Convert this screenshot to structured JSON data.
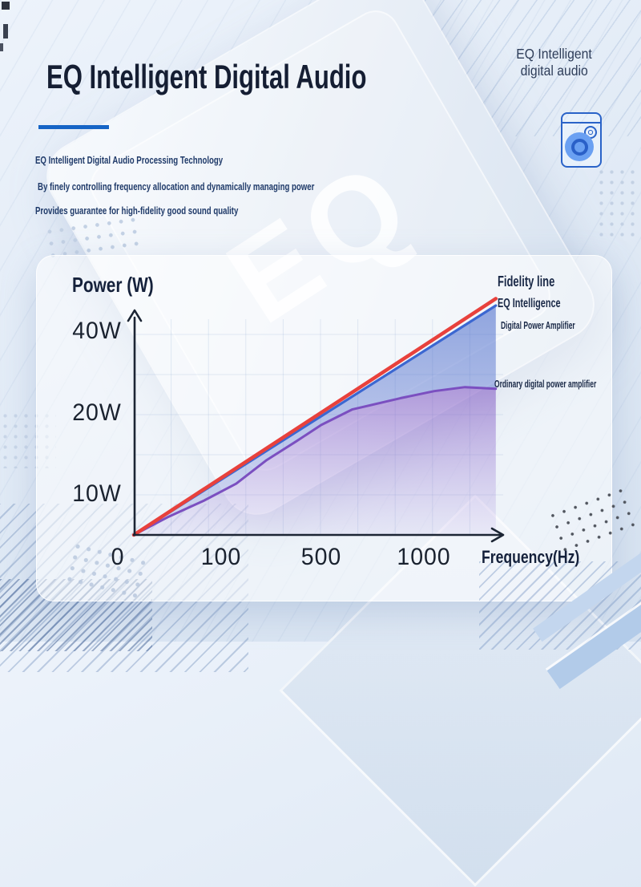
{
  "header": {
    "title": "EQ Intelligent Digital Audio",
    "subtitles": [
      "EQ Intelligent Digital Audio Processing Technology",
      "By finely controlling frequency allocation and dynamically managing power",
      "Provides guarantee for high-fidelity good sound quality"
    ]
  },
  "brand": {
    "line1": "EQ Intelligent",
    "line2": "digital audio"
  },
  "chip": {
    "label": "EQ"
  },
  "colors": {
    "accent_blue": "#1564c6",
    "line_red": "#e8413c",
    "line_blue": "#3b67d1",
    "line_purple": "#7b4fc0",
    "axis": "#1c2534",
    "heading_navy": "#151e33"
  },
  "chart_data": {
    "type": "area",
    "title": "",
    "xlabel": "Frequency(Hz)",
    "ylabel": "Power (W)",
    "xlim": [
      0,
      1350
    ],
    "ylim": [
      0,
      48
    ],
    "grid": true,
    "legend_position": "right",
    "x_ticks": [
      {
        "label": "0",
        "f": -0.042
      },
      {
        "label": "100",
        "f": 0.234
      },
      {
        "label": "500",
        "f": 0.502
      },
      {
        "label": "1000",
        "f": 0.777
      }
    ],
    "y_ticks": [
      {
        "label": "10W",
        "f": 0.181
      },
      {
        "label": "20W",
        "f": 0.544
      },
      {
        "label": "40W",
        "f": 0.907
      }
    ],
    "x_scale": [
      [
        0,
        0
      ],
      [
        100,
        0.234
      ],
      [
        500,
        0.502
      ],
      [
        1000,
        0.777
      ]
    ],
    "y_scale": [
      [
        0,
        0
      ],
      [
        10,
        0.181
      ],
      [
        20,
        0.544
      ],
      [
        40,
        0.907
      ]
    ],
    "series": [
      {
        "name": "Fidelity line",
        "color": "#e8413c",
        "width": 4.5,
        "points": [
          [
            0,
            0
          ],
          [
            1350,
            48
          ]
        ],
        "fill": "none"
      },
      {
        "name": "EQ Intelligence Digital Power Amplifier",
        "color": "#3b67d1",
        "width": 3.2,
        "points": [
          [
            0,
            0
          ],
          [
            1350,
            46.3
          ]
        ],
        "fill": "to-ordinary"
      },
      {
        "name": "Ordinary digital power amplifier",
        "color": "#7b4fc0",
        "width": 3,
        "points": [
          [
            0,
            0
          ],
          [
            40,
            4.5
          ],
          [
            80,
            8.4
          ],
          [
            160,
            11.3
          ],
          [
            282,
            14.2
          ],
          [
            400,
            16.5
          ],
          [
            500,
            18.5
          ],
          [
            650,
            20.8
          ],
          [
            887,
            23.6
          ],
          [
            1050,
            25.3
          ],
          [
            1200,
            26.3
          ],
          [
            1350,
            25.9
          ]
        ],
        "fill": "to-baseline"
      }
    ],
    "legend": {
      "fidelity": "Fidelity line",
      "eq_line1": "EQ Intelligence",
      "eq_line2": "Digital Power Amplifier",
      "ordinary": "Ordinary digital power amplifier"
    }
  }
}
